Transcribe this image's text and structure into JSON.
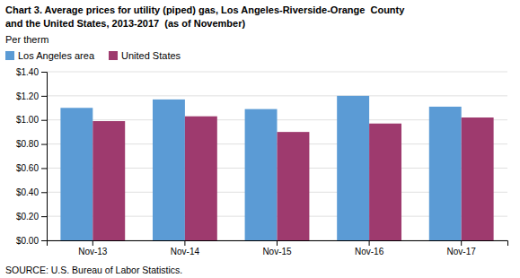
{
  "chart_data": {
    "type": "bar",
    "title": "Chart 3. Average prices for utility (piped) gas, Los Angeles-Riverside-Orange  County",
    "subtitle": "and the United States, 2013-2017  (as of November)",
    "y_label": "Per therm",
    "annotations": [
      "SOURCE: U.S. Bureau of Labor Statistics."
    ],
    "categories": [
      "Nov-13",
      "Nov-14",
      "Nov-15",
      "Nov-16",
      "Nov-17"
    ],
    "series": [
      {
        "name": "Los Angeles area",
        "color": "#5B9BD5",
        "values": [
          1.1,
          1.17,
          1.09,
          1.2,
          1.11
        ]
      },
      {
        "name": "United States",
        "color": "#9E3A6E",
        "values": [
          0.99,
          1.03,
          0.9,
          0.97,
          1.02
        ]
      }
    ],
    "ylim": [
      0,
      1.4
    ],
    "yticks": [
      {
        "value": 0.0,
        "label": "$0.00"
      },
      {
        "value": 0.2,
        "label": "$0.20"
      },
      {
        "value": 0.4,
        "label": "$0.40"
      },
      {
        "value": 0.6,
        "label": "$0.60"
      },
      {
        "value": 0.8,
        "label": "$0.80"
      },
      {
        "value": 1.0,
        "label": "$1.00"
      },
      {
        "value": 1.2,
        "label": "$1.20"
      },
      {
        "value": 1.4,
        "label": "$1.40"
      }
    ],
    "grid": true,
    "legend": "top-left"
  }
}
